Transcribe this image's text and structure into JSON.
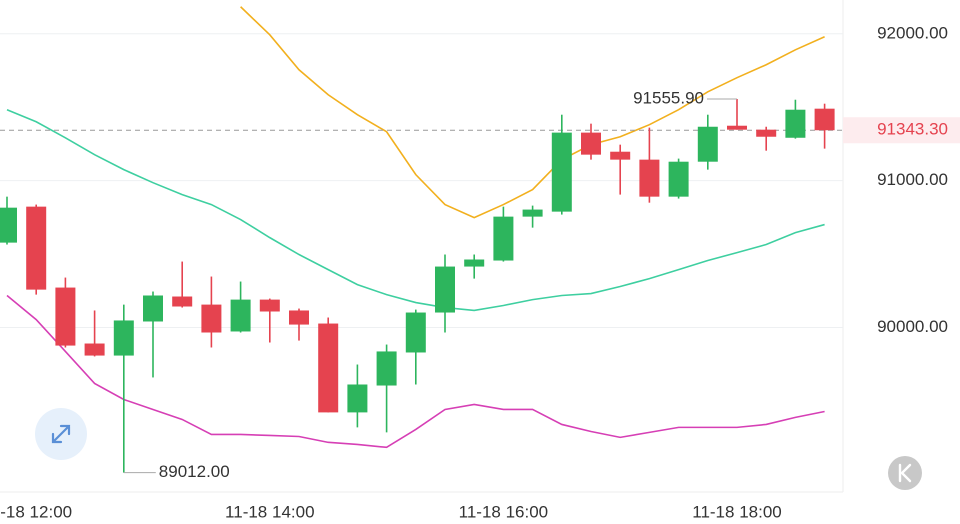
{
  "chart_data": {
    "type": "candlestick",
    "categories": [
      null,
      "-18 12:00",
      null,
      null,
      null,
      null,
      null,
      null,
      null,
      "11-18 14:00",
      null,
      null,
      null,
      null,
      null,
      null,
      null,
      "11-18 16:00",
      null,
      null,
      null,
      null,
      null,
      null,
      null,
      "11-18 18:00",
      null,
      null,
      null
    ],
    "open": [
      90578,
      90823,
      90272,
      89891,
      89809,
      90041,
      90211,
      90156,
      89973,
      90190,
      90116,
      90027,
      89422,
      89605,
      89830,
      90102,
      90415,
      90456,
      90755,
      90789,
      91327,
      91197,
      91143,
      90891,
      91129,
      91374,
      91347,
      91292,
      91490
    ],
    "high": [
      90891,
      90837,
      90340,
      90116,
      90156,
      90245,
      90449,
      90347,
      90313,
      90197,
      90129,
      90068,
      89748,
      89884,
      90122,
      90497,
      90497,
      90823,
      90830,
      91449,
      91388,
      91245,
      91361,
      91150,
      91449,
      91555.9,
      91367,
      91551,
      91524
    ],
    "low": [
      90565,
      90224,
      89864,
      89803,
      89012,
      89660,
      90136,
      89864,
      89966,
      89898,
      89911,
      89422,
      89320,
      89286,
      89612,
      89966,
      90333,
      90449,
      90680,
      90769,
      91143,
      90905,
      90850,
      90878,
      91075,
      91347,
      91204,
      91286,
      91218
    ],
    "close": [
      90816,
      90258,
      89877,
      89809,
      90048,
      90218,
      90143,
      89966,
      90190,
      90109,
      90020,
      89422,
      89612,
      89837,
      90102,
      90415,
      90463,
      90755,
      90803,
      91327,
      91177,
      91143,
      90891,
      91129,
      91367,
      91347,
      91299,
      91483,
      91343.3
    ],
    "up_color": "#2db55d",
    "down_color": "#e5434f",
    "bands": [
      {
        "color": "#f2b01e",
        "values": [
          null,
          null,
          null,
          null,
          null,
          null,
          null,
          null,
          92184,
          91993,
          91755,
          91585,
          91449,
          91333,
          91041,
          90837,
          90748,
          90837,
          90939,
          91143,
          91245,
          91299,
          91381,
          91483,
          91605,
          91701,
          91789,
          91891,
          91980
        ]
      },
      {
        "color": "#3ecfa0",
        "values": [
          91483,
          91401,
          91292,
          91177,
          91075,
          90986,
          90905,
          90837,
          90735,
          90612,
          90497,
          90394,
          90292,
          90224,
          90170,
          90136,
          90116,
          90150,
          90190,
          90218,
          90231,
          90279,
          90333,
          90394,
          90456,
          90510,
          90565,
          90646,
          90701
        ]
      },
      {
        "color": "#d63fb5",
        "values": [
          90218,
          90054,
          89837,
          89619,
          89510,
          89442,
          89374,
          89272,
          89272,
          89265,
          89258,
          89218,
          89204,
          89184,
          89306,
          89442,
          89476,
          89442,
          89442,
          89340,
          89292,
          89252,
          89286,
          89320,
          89320,
          89320,
          89340,
          89388,
          89428
        ]
      }
    ],
    "ylim": [
      88880,
      92230
    ],
    "yticks": [
      {
        "value": 90000,
        "label": "90000.00"
      },
      {
        "value": 91000,
        "label": "91000.00"
      },
      {
        "value": 92000,
        "label": "92000.00"
      }
    ],
    "grid": true,
    "max_label": {
      "value": 91555.9,
      "label": "91555.90"
    },
    "min_label": {
      "value": 89012,
      "label": "89012.00"
    },
    "last_price": {
      "value": 91343.3,
      "label": "91343.30",
      "color": "#e5434f"
    }
  }
}
